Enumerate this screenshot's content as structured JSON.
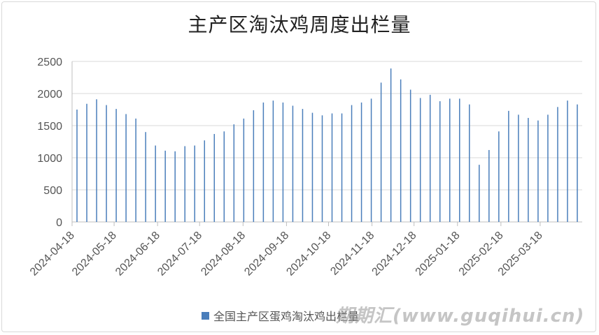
{
  "chart_data": {
    "type": "bar",
    "title": "主产区淘汰鸡周度出栏量",
    "legend_position": "bottom",
    "series": [
      {
        "name": "全国主产区蛋鸡淘汰鸡出栏量",
        "color": "#4a7ebb",
        "values": [
          1750,
          1840,
          1910,
          1820,
          1760,
          1680,
          1610,
          1400,
          1190,
          1110,
          1100,
          1180,
          1190,
          1270,
          1370,
          1410,
          1520,
          1610,
          1740,
          1860,
          1890,
          1860,
          1810,
          1760,
          1700,
          1660,
          1690,
          1690,
          1820,
          1860,
          1920,
          2170,
          2390,
          2220,
          2060,
          1930,
          1980,
          1880,
          1920,
          1920,
          1830,
          890,
          1120,
          1410,
          1730,
          1670,
          1620,
          1580,
          1670,
          1790,
          1890,
          1830
        ]
      }
    ],
    "x_start": "2024-04-18",
    "x_interval_days": 7,
    "x_tick_labels": [
      "2024-04-18",
      "2024-05-18",
      "2024-06-18",
      "2024-07-18",
      "2024-08-18",
      "2024-09-18",
      "2024-10-18",
      "2024-11-18",
      "2024-12-18",
      "2025-01-18",
      "2025-02-18",
      "2025-03-18"
    ],
    "ylim": [
      0,
      2500
    ],
    "y_ticks": [
      0,
      500,
      1000,
      1500,
      2000,
      2500
    ],
    "grid": "horizontal"
  },
  "watermark": "期期汇(www.guqihui.cn)"
}
